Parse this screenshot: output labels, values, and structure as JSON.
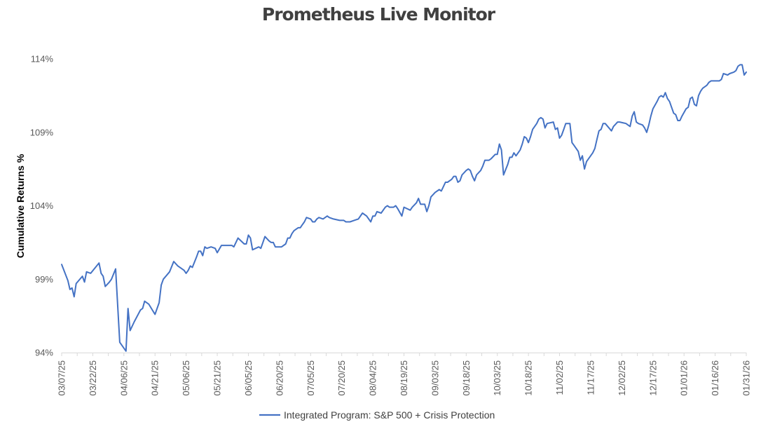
{
  "chart_data": {
    "type": "line",
    "title": "Prometheus Live Monitor",
    "xlabel": "",
    "ylabel": "Cumulative Returns %",
    "ylim": [
      94,
      114
    ],
    "yticks": [
      94,
      99,
      104,
      109,
      114
    ],
    "ytick_labels": [
      "94%",
      "99%",
      "104%",
      "109%",
      "114%"
    ],
    "xtick_labels": [
      "03/07/25",
      "03/22/25",
      "04/06/25",
      "04/21/25",
      "05/06/25",
      "05/21/25",
      "06/05/25",
      "06/20/25",
      "07/05/25",
      "07/20/25",
      "08/04/25",
      "08/19/25",
      "09/03/25",
      "09/18/25",
      "10/03/25",
      "10/18/25",
      "11/02/25",
      "11/17/25",
      "12/02/25",
      "12/17/25",
      "01/01/26",
      "01/16/26",
      "01/31/26"
    ],
    "x_start_date": "03/07/25",
    "x_days_total": 330,
    "grid": false,
    "legend": "bottom",
    "colors": {
      "line": "#4472C4",
      "axis": "#d9d9d9"
    },
    "series": [
      {
        "name": "Integrated Program: S&P 500 + Crisis Protection",
        "points": [
          [
            0,
            100.0
          ],
          [
            3,
            98.9
          ],
          [
            4,
            98.3
          ],
          [
            5,
            98.4
          ],
          [
            6,
            97.8
          ],
          [
            7,
            98.7
          ],
          [
            10,
            99.2
          ],
          [
            11,
            98.8
          ],
          [
            12,
            99.5
          ],
          [
            14,
            99.4
          ],
          [
            18,
            100.1
          ],
          [
            19,
            99.4
          ],
          [
            20,
            99.2
          ],
          [
            21,
            98.5
          ],
          [
            23,
            98.8
          ],
          [
            24,
            99.0
          ],
          [
            26,
            99.7
          ],
          [
            28,
            94.7
          ],
          [
            31,
            94.1
          ],
          [
            32,
            97.0
          ],
          [
            33,
            95.5
          ],
          [
            35,
            96.1
          ],
          [
            38,
            96.9
          ],
          [
            39,
            97.0
          ],
          [
            40,
            97.5
          ],
          [
            42,
            97.3
          ],
          [
            45,
            96.6
          ],
          [
            47,
            97.4
          ],
          [
            48,
            98.6
          ],
          [
            49,
            99.0
          ],
          [
            52,
            99.5
          ],
          [
            54,
            100.2
          ],
          [
            56,
            99.9
          ],
          [
            59,
            99.6
          ],
          [
            60,
            99.4
          ],
          [
            61,
            99.6
          ],
          [
            62,
            99.9
          ],
          [
            63,
            99.8
          ],
          [
            65,
            100.5
          ],
          [
            66,
            100.9
          ],
          [
            67,
            100.9
          ],
          [
            68,
            100.6
          ],
          [
            69,
            101.2
          ],
          [
            70,
            101.1
          ],
          [
            72,
            101.2
          ],
          [
            74,
            101.1
          ],
          [
            75,
            100.8
          ],
          [
            77,
            101.3
          ],
          [
            79,
            101.3
          ],
          [
            82,
            101.3
          ],
          [
            83,
            101.2
          ],
          [
            85,
            101.8
          ],
          [
            88,
            101.4
          ],
          [
            89,
            101.4
          ],
          [
            90,
            102.0
          ],
          [
            91,
            101.8
          ],
          [
            92,
            101.0
          ],
          [
            95,
            101.2
          ],
          [
            96,
            101.1
          ],
          [
            97,
            101.5
          ],
          [
            98,
            101.9
          ],
          [
            100,
            101.6
          ],
          [
            101,
            101.5
          ],
          [
            102,
            101.5
          ],
          [
            103,
            101.2
          ],
          [
            106,
            101.2
          ],
          [
            108,
            101.4
          ],
          [
            109,
            101.8
          ],
          [
            110,
            101.8
          ],
          [
            111,
            102.1
          ],
          [
            112,
            102.3
          ],
          [
            114,
            102.5
          ],
          [
            115,
            102.5
          ],
          [
            116,
            102.7
          ],
          [
            117,
            102.9
          ],
          [
            118,
            103.2
          ],
          [
            120,
            103.1
          ],
          [
            121,
            102.9
          ],
          [
            122,
            102.9
          ],
          [
            123,
            103.1
          ],
          [
            124,
            103.2
          ],
          [
            126,
            103.1
          ],
          [
            128,
            103.3
          ],
          [
            129,
            103.2
          ],
          [
            131,
            103.1
          ],
          [
            134,
            103.0
          ],
          [
            136,
            103.0
          ],
          [
            137,
            102.9
          ],
          [
            139,
            102.9
          ],
          [
            141,
            103.0
          ],
          [
            143,
            103.1
          ],
          [
            145,
            103.5
          ],
          [
            147,
            103.3
          ],
          [
            149,
            102.9
          ],
          [
            150,
            103.3
          ],
          [
            151,
            103.3
          ],
          [
            152,
            103.6
          ],
          [
            154,
            103.5
          ],
          [
            156,
            103.9
          ],
          [
            157,
            104.0
          ],
          [
            158,
            103.9
          ],
          [
            160,
            103.9
          ],
          [
            161,
            104.0
          ],
          [
            162,
            103.8
          ],
          [
            164,
            103.3
          ],
          [
            165,
            103.9
          ],
          [
            168,
            103.7
          ],
          [
            169,
            103.9
          ],
          [
            171,
            104.2
          ],
          [
            172,
            104.5
          ],
          [
            173,
            104.1
          ],
          [
            175,
            104.1
          ],
          [
            176,
            103.6
          ],
          [
            177,
            104.0
          ],
          [
            178,
            104.6
          ],
          [
            180,
            104.9
          ],
          [
            182,
            105.1
          ],
          [
            183,
            105.0
          ],
          [
            185,
            105.6
          ],
          [
            186,
            105.6
          ],
          [
            188,
            105.8
          ],
          [
            189,
            106.0
          ],
          [
            190,
            106.0
          ],
          [
            191,
            105.6
          ],
          [
            192,
            105.7
          ],
          [
            193,
            106.1
          ],
          [
            195,
            106.4
          ],
          [
            196,
            106.5
          ],
          [
            197,
            106.4
          ],
          [
            198,
            106.0
          ],
          [
            199,
            105.7
          ],
          [
            200,
            106.1
          ],
          [
            202,
            106.4
          ],
          [
            203,
            106.7
          ],
          [
            204,
            107.1
          ],
          [
            206,
            107.1
          ],
          [
            207,
            107.2
          ],
          [
            209,
            107.5
          ],
          [
            210,
            107.5
          ],
          [
            211,
            108.2
          ],
          [
            212,
            107.8
          ],
          [
            213,
            106.1
          ],
          [
            215,
            106.8
          ],
          [
            216,
            107.3
          ],
          [
            217,
            107.3
          ],
          [
            218,
            107.6
          ],
          [
            219,
            107.4
          ],
          [
            221,
            107.8
          ],
          [
            222,
            108.2
          ],
          [
            223,
            108.7
          ],
          [
            224,
            108.6
          ],
          [
            225,
            108.3
          ],
          [
            226,
            108.7
          ],
          [
            227,
            109.2
          ],
          [
            229,
            109.6
          ],
          [
            230,
            109.9
          ],
          [
            231,
            110.0
          ],
          [
            232,
            109.9
          ],
          [
            233,
            109.3
          ],
          [
            234,
            109.6
          ],
          [
            237,
            109.7
          ],
          [
            238,
            109.2
          ],
          [
            239,
            109.3
          ],
          [
            240,
            108.6
          ],
          [
            241,
            108.8
          ],
          [
            242,
            109.2
          ],
          [
            243,
            109.6
          ],
          [
            245,
            109.6
          ],
          [
            246,
            108.3
          ],
          [
            247,
            108.1
          ],
          [
            249,
            107.7
          ],
          [
            250,
            107.1
          ],
          [
            251,
            107.4
          ],
          [
            252,
            106.5
          ],
          [
            253,
            107.0
          ],
          [
            256,
            107.6
          ],
          [
            257,
            107.9
          ],
          [
            258,
            108.5
          ],
          [
            259,
            109.1
          ],
          [
            260,
            109.2
          ],
          [
            261,
            109.6
          ],
          [
            262,
            109.6
          ],
          [
            265,
            109.1
          ],
          [
            266,
            109.4
          ],
          [
            268,
            109.7
          ],
          [
            269,
            109.7
          ],
          [
            272,
            109.6
          ],
          [
            273,
            109.5
          ],
          [
            274,
            109.4
          ],
          [
            275,
            110.1
          ],
          [
            276,
            110.4
          ],
          [
            277,
            109.7
          ],
          [
            278,
            109.6
          ],
          [
            280,
            109.5
          ],
          [
            281,
            109.3
          ],
          [
            282,
            109.0
          ],
          [
            283,
            109.5
          ],
          [
            284,
            110.1
          ],
          [
            285,
            110.6
          ],
          [
            287,
            111.1
          ],
          [
            288,
            111.4
          ],
          [
            289,
            111.5
          ],
          [
            290,
            111.4
          ],
          [
            291,
            111.7
          ],
          [
            292,
            111.3
          ],
          [
            293,
            111.1
          ],
          [
            294,
            110.7
          ],
          [
            295,
            110.3
          ],
          [
            296,
            110.2
          ],
          [
            297,
            109.8
          ],
          [
            298,
            109.8
          ],
          [
            299,
            110.1
          ],
          [
            301,
            110.6
          ],
          [
            302,
            110.7
          ],
          [
            303,
            111.3
          ],
          [
            304,
            111.4
          ],
          [
            305,
            110.9
          ],
          [
            306,
            110.8
          ],
          [
            307,
            111.5
          ],
          [
            308,
            111.8
          ],
          [
            309,
            112.0
          ],
          [
            311,
            112.2
          ],
          [
            312,
            112.4
          ],
          [
            313,
            112.5
          ],
          [
            316,
            112.5
          ],
          [
            317,
            112.5
          ],
          [
            318,
            112.6
          ],
          [
            319,
            113.0
          ],
          [
            321,
            112.9
          ],
          [
            322,
            113.0
          ],
          [
            324,
            113.1
          ],
          [
            325,
            113.2
          ],
          [
            326,
            113.5
          ],
          [
            327,
            113.6
          ],
          [
            328,
            113.6
          ],
          [
            329,
            112.9
          ],
          [
            330,
            113.1
          ]
        ]
      }
    ]
  }
}
